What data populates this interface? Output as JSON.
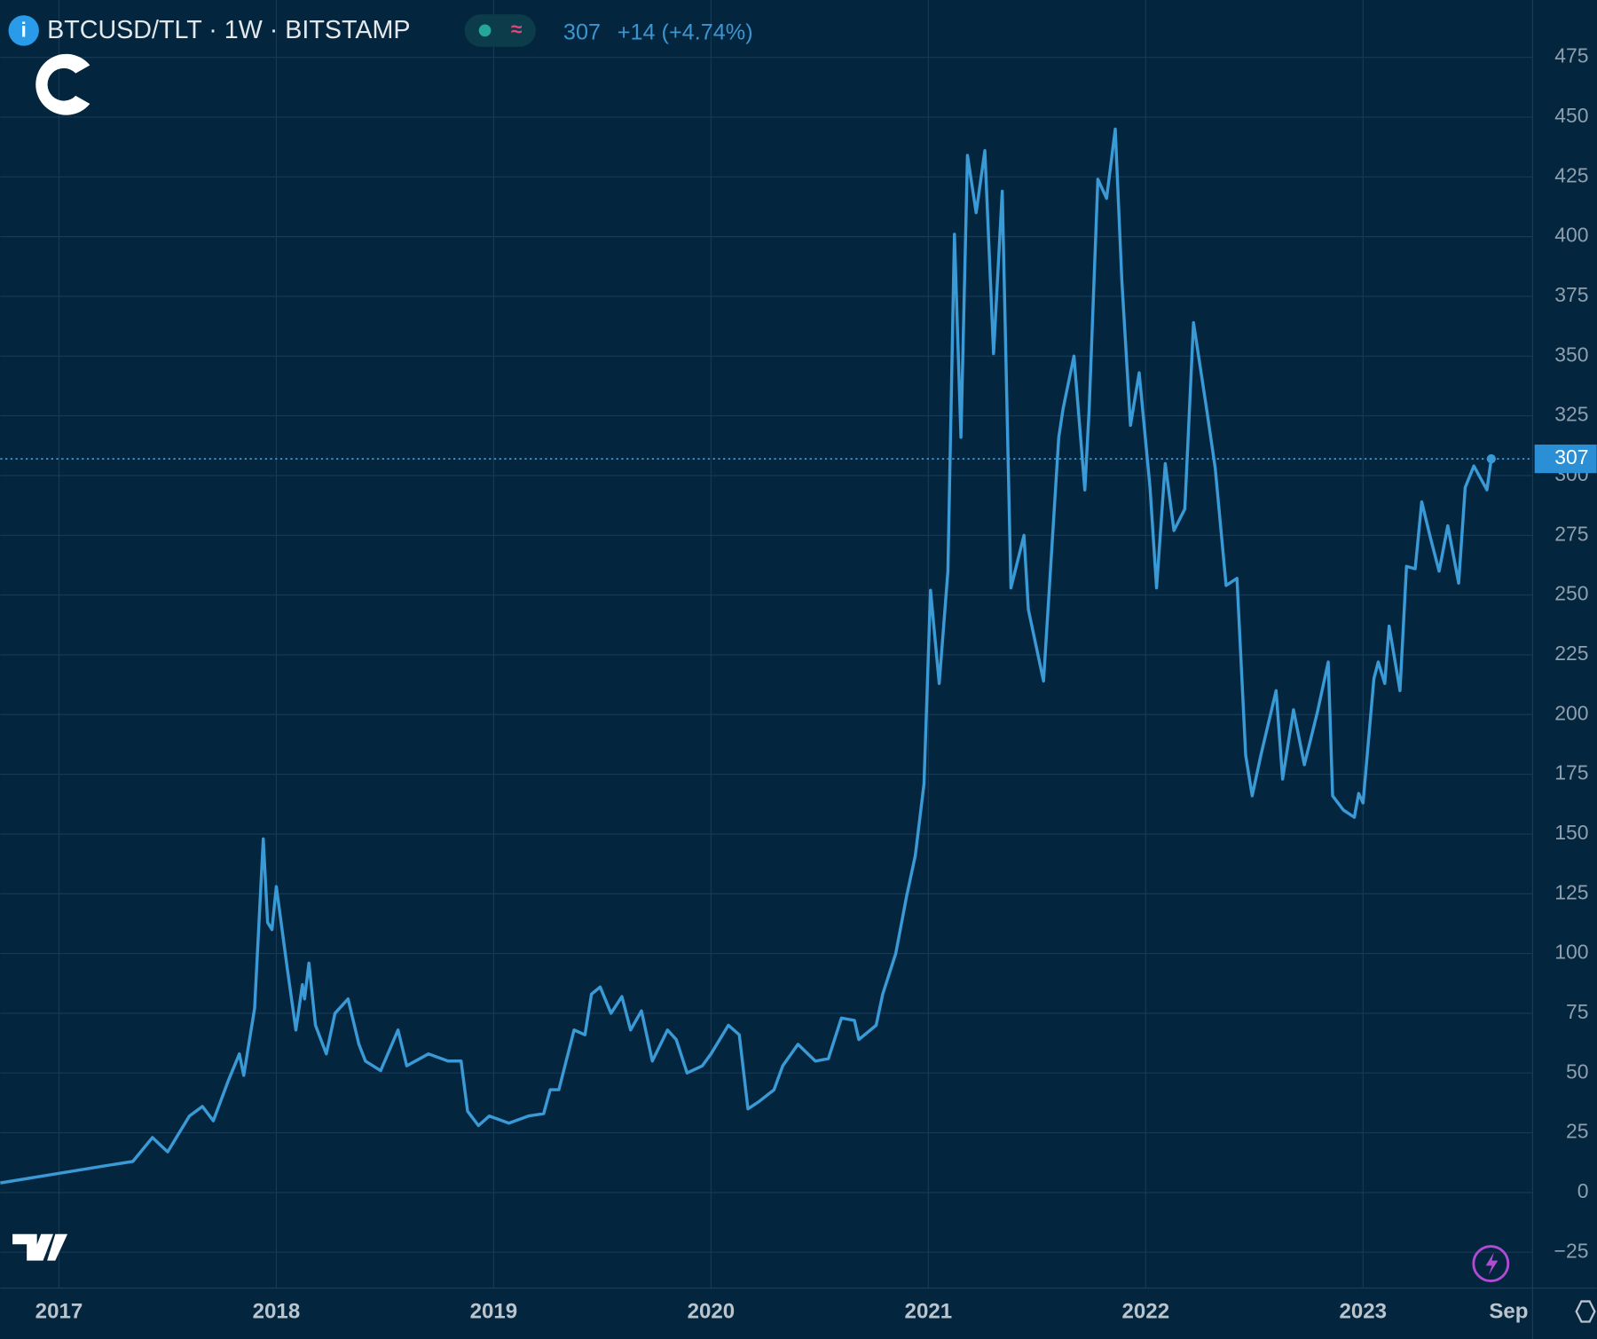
{
  "chart_data": {
    "type": "line",
    "title": "BTCUSD/TLT · 1W · BITSTAMP",
    "last_price": "307",
    "change": "+14 (+4.74%)",
    "color": "#3a9ad6",
    "grid": true,
    "xlim": [
      2016.73,
      2023.78
    ],
    "ylim": [
      -40,
      499
    ],
    "xticks": [
      2017,
      2018,
      2019,
      2020,
      2021,
      2022,
      2023,
      {
        "value": 2023.67,
        "label": "Sep"
      }
    ],
    "yticks": [
      {
        "value": -25,
        "label": "−25"
      },
      0,
      25,
      50,
      75,
      100,
      125,
      150,
      175,
      200,
      225,
      250,
      275,
      300,
      325,
      350,
      375,
      400,
      425,
      450,
      475
    ],
    "x": [
      2016.73,
      2017.0,
      2017.2,
      2017.34,
      2017.43,
      2017.5,
      2017.6,
      2017.66,
      2017.71,
      2017.78,
      2017.83,
      2017.85,
      2017.9,
      2017.94,
      2017.96,
      2017.98,
      2018.0,
      2018.05,
      2018.09,
      2018.12,
      2018.13,
      2018.15,
      2018.18,
      2018.23,
      2018.27,
      2018.33,
      2018.38,
      2018.41,
      2018.48,
      2018.56,
      2018.6,
      2018.7,
      2018.79,
      2018.85,
      2018.88,
      2018.93,
      2018.98,
      2019.07,
      2019.16,
      2019.23,
      2019.26,
      2019.3,
      2019.37,
      2019.42,
      2019.45,
      2019.49,
      2019.54,
      2019.59,
      2019.63,
      2019.68,
      2019.73,
      2019.8,
      2019.84,
      2019.89,
      2019.96,
      2020.0,
      2020.08,
      2020.13,
      2020.17,
      2020.22,
      2020.29,
      2020.33,
      2020.4,
      2020.48,
      2020.54,
      2020.6,
      2020.66,
      2020.68,
      2020.76,
      2020.79,
      2020.85,
      2020.9,
      2020.94,
      2020.98,
      2021.01,
      2021.05,
      2021.09,
      2021.12,
      2021.15,
      2021.18,
      2021.22,
      2021.26,
      2021.3,
      2021.34,
      2021.38,
      2021.44,
      2021.46,
      2021.53,
      2021.6,
      2021.62,
      2021.67,
      2021.72,
      2021.74,
      2021.78,
      2021.82,
      2021.86,
      2021.89,
      2021.93,
      2021.97,
      2022.02,
      2022.05,
      2022.09,
      2022.13,
      2022.18,
      2022.22,
      2022.28,
      2022.32,
      2022.37,
      2022.42,
      2022.46,
      2022.49,
      2022.53,
      2022.6,
      2022.63,
      2022.68,
      2022.73,
      2022.79,
      2022.84,
      2022.86,
      2022.91,
      2022.96,
      2022.98,
      2023.0,
      2023.05,
      2023.07,
      2023.1,
      2023.12,
      2023.17,
      2023.2,
      2023.24,
      2023.27,
      2023.31,
      2023.35,
      2023.39,
      2023.44,
      2023.47,
      2023.51,
      2023.57,
      2023.59
    ],
    "values": [
      4,
      8,
      11,
      13,
      23,
      17,
      32,
      36,
      30,
      47,
      58,
      49,
      77,
      148,
      113,
      110,
      128,
      94,
      68,
      87,
      81,
      96,
      70,
      58,
      75,
      81,
      62,
      55,
      51,
      68,
      53,
      58,
      55,
      55,
      34,
      28,
      32,
      29,
      32,
      33,
      43,
      43,
      68,
      66,
      83,
      86,
      75,
      82,
      68,
      76,
      55,
      68,
      64,
      50,
      53,
      58,
      70,
      66,
      35,
      38,
      43,
      53,
      62,
      55,
      56,
      73,
      72,
      64,
      70,
      83,
      100,
      124,
      141,
      171,
      252,
      213,
      260,
      401,
      316,
      434,
      410,
      436,
      351,
      419,
      253,
      275,
      244,
      214,
      316,
      328,
      350,
      294,
      328,
      424,
      416,
      445,
      382,
      321,
      343,
      295,
      253,
      305,
      277,
      286,
      364,
      328,
      303,
      254,
      257,
      183,
      166,
      183,
      210,
      173,
      202,
      179,
      201,
      222,
      166,
      160,
      157,
      167,
      163,
      215,
      222,
      213,
      237,
      210,
      262,
      261,
      289,
      274,
      260,
      279,
      255,
      295,
      304,
      294,
      307
    ]
  }
}
